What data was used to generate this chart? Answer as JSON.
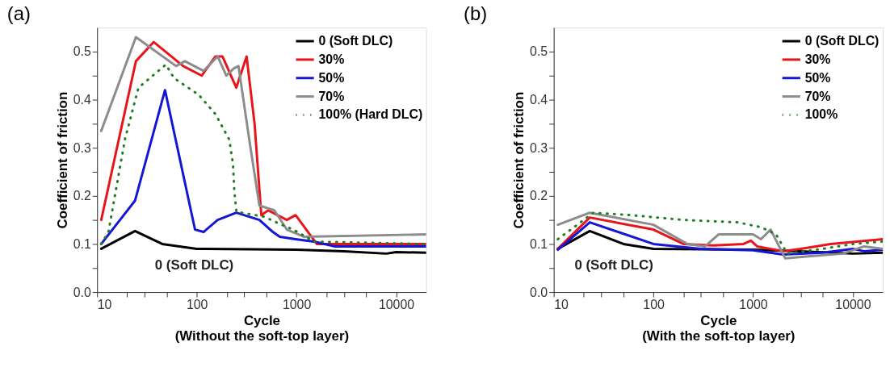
{
  "chart_data": [
    {
      "type": "line",
      "title": "(a)",
      "xlabel": "Cycle\n(Without the soft-top layer)",
      "ylabel": "Coefficient of friction",
      "log": "x",
      "grid": false,
      "legend": "top right",
      "line_style": "solid",
      "marker": "none",
      "xlim": [
        10,
        20000
      ],
      "ylim": [
        0,
        0.55
      ],
      "xticks": [
        10,
        {
          "value": 20,
          "label": null
        },
        {
          "value": 30,
          "label": null
        },
        {
          "value": 50,
          "label": null
        },
        100,
        {
          "value": 200,
          "label": null
        },
        {
          "value": 300,
          "label": null
        },
        {
          "value": 500,
          "label": null
        },
        1000,
        {
          "value": 2000,
          "label": null
        },
        {
          "value": 3000,
          "label": null
        },
        {
          "value": 5000,
          "label": null
        },
        10000
      ],
      "yticks": [
        {
          "value": 0,
          "label": "0.0"
        },
        {
          "value": 0.05,
          "label": null
        },
        0.1,
        {
          "value": 0.15,
          "label": null
        },
        0.2,
        {
          "value": 0.25,
          "label": null
        },
        0.3,
        {
          "value": 0.35,
          "label": null
        },
        0.4,
        {
          "value": 0.45,
          "label": null
        },
        0.5
      ],
      "annotations": [
        "0 (Soft DLC)"
      ],
      "series": [
        {
          "name": "0 (Soft DLC)",
          "color": "#000000",
          "x": [
            11,
            24,
            45,
            100,
            1000,
            3000,
            8000,
            10000,
            20000
          ],
          "values": [
            0.09,
            0.127,
            0.1,
            0.09,
            0.088,
            0.085,
            0.08,
            0.083,
            0.082
          ]
        },
        {
          "name": "30%",
          "color": "#e8141a",
          "x": [
            11,
            24.5,
            37,
            73,
            112,
            154,
            181,
            249,
            316,
            380,
            444,
            520,
            800,
            980,
            1600,
            5000,
            20000
          ],
          "values": [
            0.15,
            0.48,
            0.52,
            0.47,
            0.45,
            0.49,
            0.49,
            0.425,
            0.49,
            0.35,
            0.16,
            0.17,
            0.15,
            0.16,
            0.1,
            0.1,
            0.1
          ]
        },
        {
          "name": "50%",
          "color": "#1515d6",
          "x": [
            11,
            24,
            48,
            96,
            117,
            162,
            249,
            425,
            580,
            680,
            980,
            1500,
            2440,
            20000
          ],
          "values": [
            0.1,
            0.19,
            0.42,
            0.13,
            0.125,
            0.15,
            0.165,
            0.15,
            0.125,
            0.115,
            0.11,
            0.105,
            0.095,
            0.095
          ]
        },
        {
          "name": "70%",
          "color": "#8c8c8c",
          "x": [
            11,
            24.5,
            62,
            76,
            117,
            162,
            198,
            235,
            262,
            340,
            425,
            600,
            800,
            1200,
            20000
          ],
          "values": [
            0.335,
            0.53,
            0.47,
            0.48,
            0.46,
            0.49,
            0.45,
            0.465,
            0.47,
            0.31,
            0.18,
            0.17,
            0.13,
            0.115,
            0.12
          ]
        },
        {
          "name": "100% (Hard DLC)",
          "color": "#1e7d1e",
          "line_style": "dotted",
          "x": [
            11,
            13,
            19,
            26,
            49,
            59,
            105,
            154,
            212,
            231,
            238,
            250,
            470,
            710,
            930,
            1500,
            20000
          ],
          "values": [
            0.1,
            0.125,
            0.317,
            0.425,
            0.473,
            0.445,
            0.41,
            0.37,
            0.317,
            0.265,
            0.21,
            0.167,
            0.157,
            0.14,
            0.13,
            0.105,
            0.1
          ]
        }
      ]
    },
    {
      "type": "line",
      "title": "(b)",
      "xlabel": "Cycle\n(With the soft-top layer)",
      "ylabel": "Coefficient of friction",
      "log": "x",
      "grid": false,
      "legend": "top right",
      "line_style": "solid",
      "marker": "none",
      "xlim": [
        10,
        20000
      ],
      "ylim": [
        0,
        0.55
      ],
      "xticks": [
        10,
        {
          "value": 20,
          "label": null
        },
        {
          "value": 30,
          "label": null
        },
        {
          "value": 50,
          "label": null
        },
        100,
        {
          "value": 200,
          "label": null
        },
        {
          "value": 300,
          "label": null
        },
        {
          "value": 500,
          "label": null
        },
        1000,
        {
          "value": 2000,
          "label": null
        },
        {
          "value": 3000,
          "label": null
        },
        {
          "value": 5000,
          "label": null
        },
        10000
      ],
      "yticks": [
        {
          "value": 0,
          "label": "0.0"
        },
        {
          "value": 0.05,
          "label": null
        },
        0.1,
        {
          "value": 0.15,
          "label": null
        },
        0.2,
        {
          "value": 0.25,
          "label": null
        },
        0.3,
        {
          "value": 0.35,
          "label": null
        },
        0.4,
        {
          "value": 0.45,
          "label": null
        },
        0.5
      ],
      "annotations": [
        "0 (Soft DLC)"
      ],
      "series": [
        {
          "name": "0 (Soft DLC)",
          "color": "#000000",
          "x": [
            11,
            23,
            50,
            100,
            1000,
            3000,
            10000,
            20000
          ],
          "values": [
            0.09,
            0.127,
            0.1,
            0.09,
            0.088,
            0.085,
            0.08,
            0.082
          ]
        },
        {
          "name": "30%",
          "color": "#e8141a",
          "x": [
            11,
            23,
            100,
            200,
            400,
            800,
            950,
            1100,
            2000,
            3000,
            6000,
            20000
          ],
          "values": [
            0.09,
            0.155,
            0.13,
            0.1,
            0.097,
            0.1,
            0.107,
            0.095,
            0.085,
            0.09,
            0.1,
            0.11
          ]
        },
        {
          "name": "50%",
          "color": "#1515d6",
          "x": [
            11,
            23,
            100,
            300,
            1000,
            2000,
            5000,
            10000,
            13000,
            20000
          ],
          "values": [
            0.088,
            0.145,
            0.1,
            0.09,
            0.087,
            0.078,
            0.082,
            0.09,
            0.085,
            0.088
          ]
        },
        {
          "name": "70%",
          "color": "#8c8c8c",
          "x": [
            11,
            23,
            100,
            220,
            330,
            450,
            1000,
            1200,
            1500,
            2100,
            4000,
            8000,
            13000,
            20000
          ],
          "values": [
            0.14,
            0.165,
            0.14,
            0.1,
            0.095,
            0.12,
            0.12,
            0.11,
            0.13,
            0.07,
            0.075,
            0.08,
            0.095,
            0.09
          ]
        },
        {
          "name": "100%",
          "color": "#1e7d1e",
          "line_style": "dotted",
          "x": [
            11,
            25,
            60,
            200,
            700,
            1200,
            1700,
            2200,
            5000,
            10000,
            20000
          ],
          "values": [
            0.11,
            0.165,
            0.16,
            0.15,
            0.145,
            0.135,
            0.12,
            0.08,
            0.09,
            0.1,
            0.105
          ]
        }
      ]
    }
  ]
}
